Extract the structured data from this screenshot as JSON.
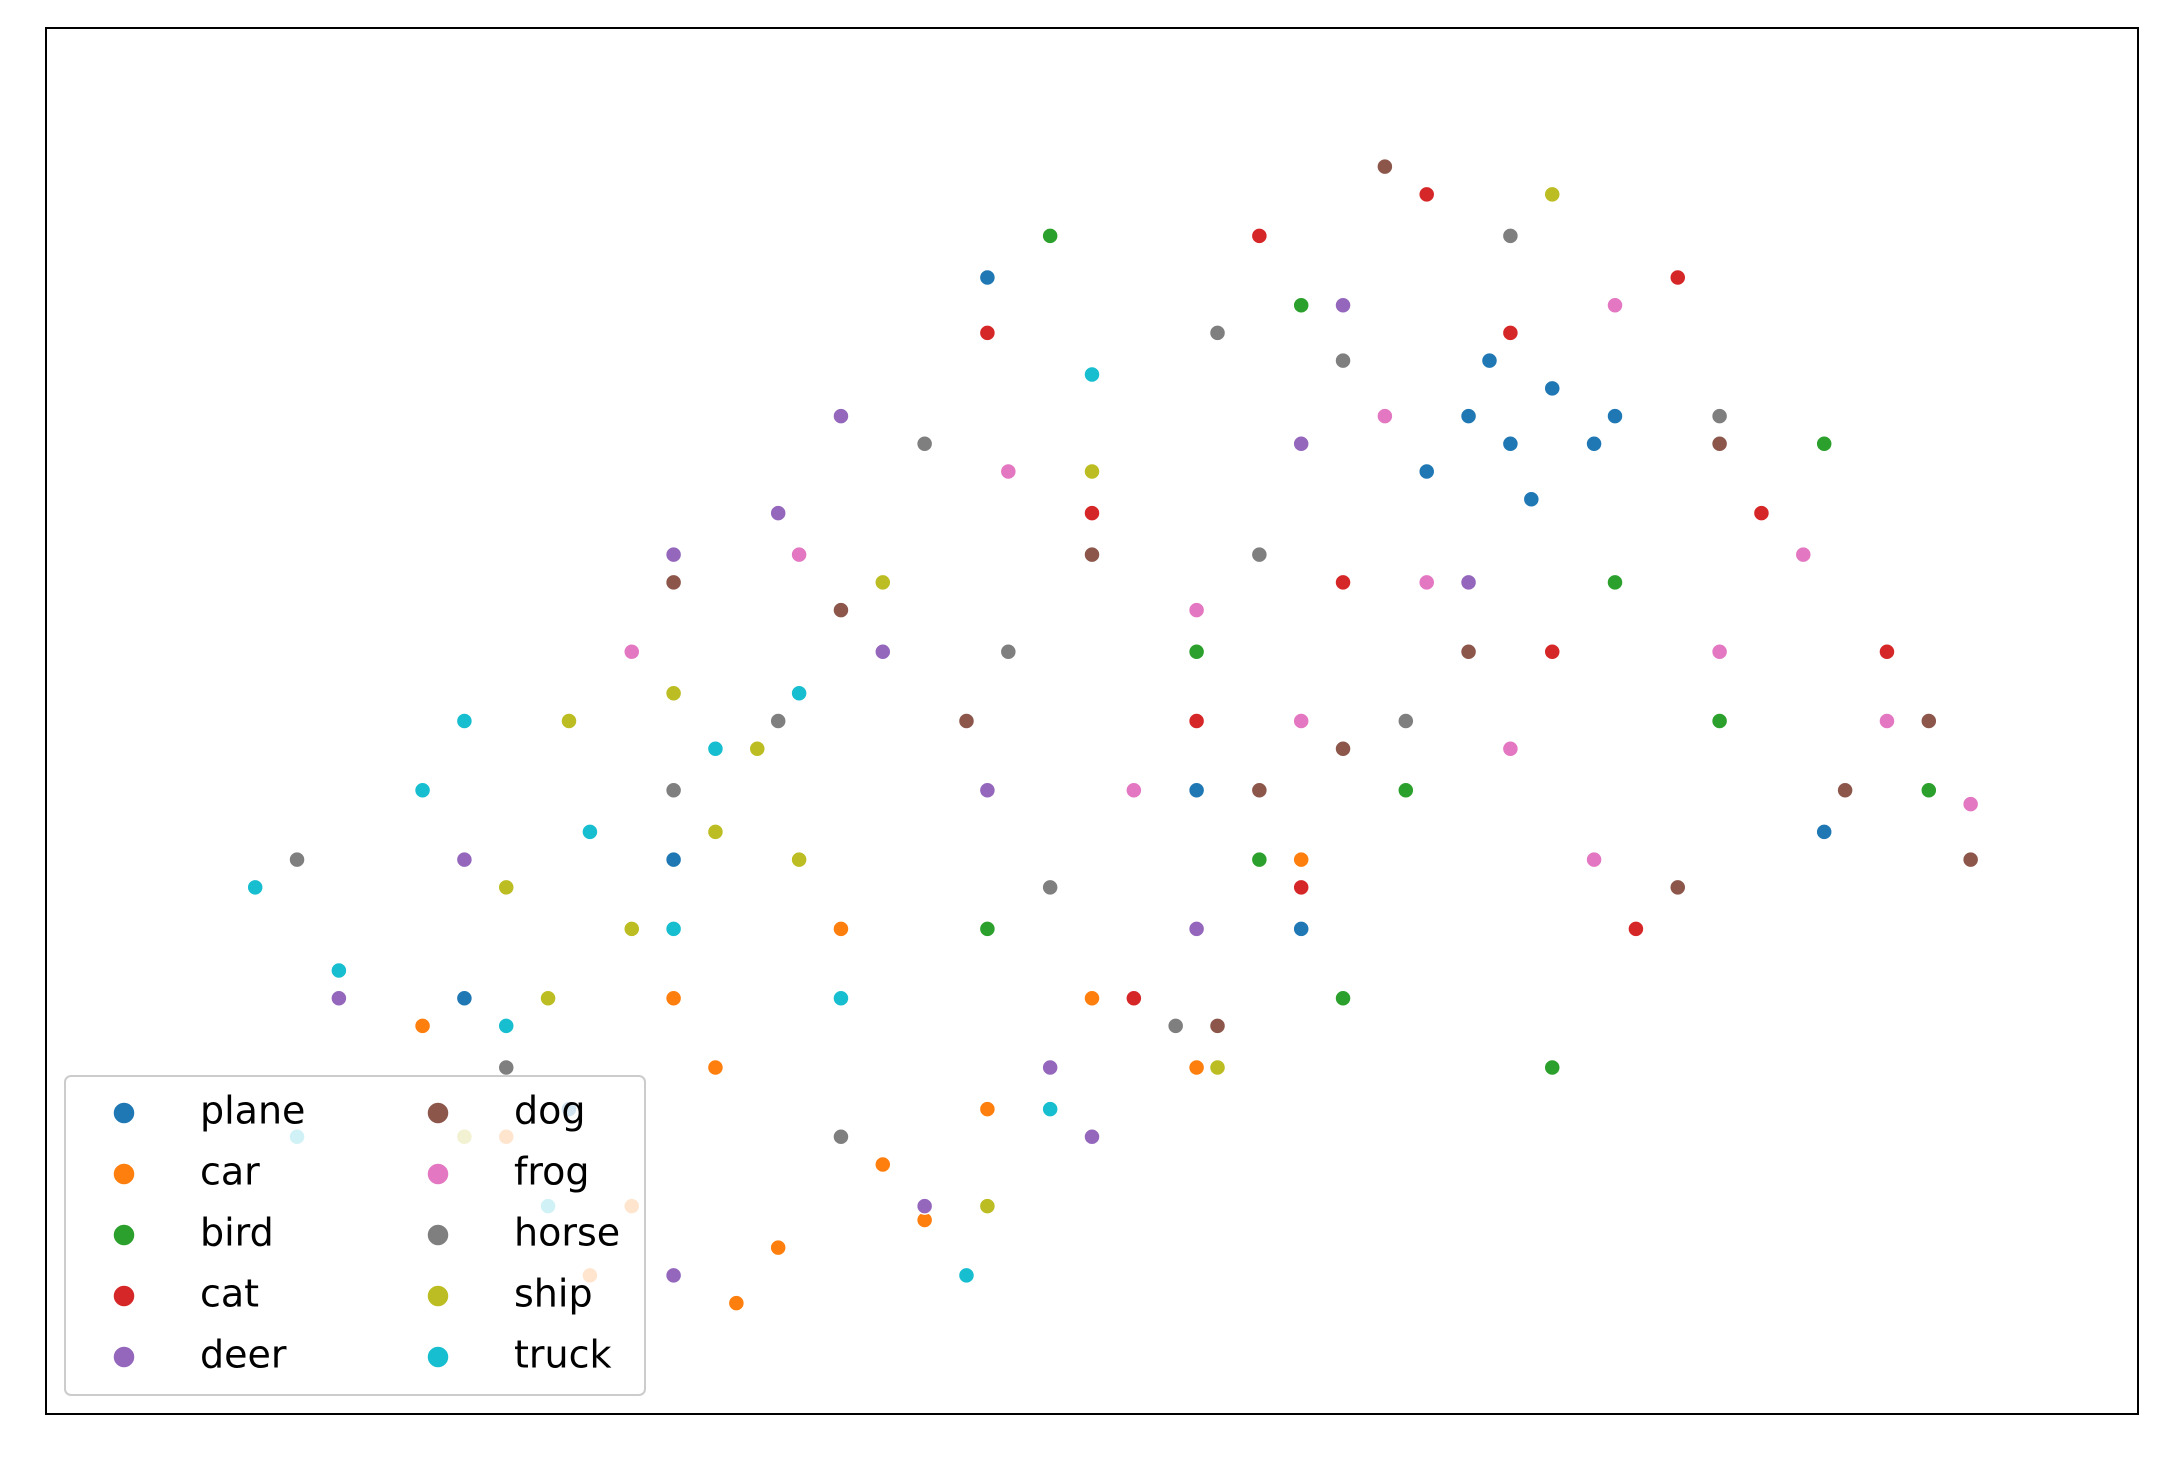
{
  "chart_data": {
    "type": "scatter",
    "xlim": [
      0,
      100
    ],
    "ylim": [
      0,
      100
    ],
    "legend": "lower left",
    "legend_columns": 2,
    "series": [
      {
        "name": "plane",
        "color": "#1f77b4",
        "x": [
          68,
          70,
          72,
          66,
          74,
          71,
          69,
          75,
          20,
          25,
          30,
          45,
          55,
          60,
          85
        ],
        "values": [
          72,
          70,
          74,
          68,
          70,
          66,
          76,
          72,
          30,
          22,
          40,
          82,
          45,
          35,
          42
        ]
      },
      {
        "name": "car",
        "color": "#ff7f0e",
        "x": [
          22,
          28,
          32,
          35,
          40,
          30,
          26,
          45,
          50,
          38,
          42,
          55,
          18,
          60,
          33
        ],
        "values": [
          20,
          15,
          25,
          12,
          18,
          30,
          10,
          22,
          30,
          35,
          14,
          25,
          28,
          40,
          8
        ]
      },
      {
        "name": "bird",
        "color": "#2ca02c",
        "x": [
          40,
          50,
          55,
          60,
          65,
          70,
          75,
          80,
          85,
          58,
          62,
          48,
          90,
          45,
          72
        ],
        "values": [
          60,
          75,
          55,
          80,
          45,
          85,
          60,
          50,
          70,
          40,
          30,
          85,
          45,
          35,
          25
        ]
      },
      {
        "name": "cat",
        "color": "#d62728",
        "x": [
          42,
          50,
          58,
          62,
          66,
          70,
          78,
          82,
          88,
          55,
          60,
          45,
          72,
          76,
          52
        ],
        "values": [
          70,
          65,
          85,
          60,
          88,
          78,
          82,
          65,
          55,
          50,
          38,
          78,
          55,
          35,
          30
        ]
      },
      {
        "name": "deer",
        "color": "#9467bd",
        "x": [
          14,
          20,
          30,
          40,
          45,
          48,
          55,
          60,
          35,
          62,
          30,
          42,
          50,
          68,
          38
        ],
        "values": [
          30,
          40,
          62,
          55,
          45,
          25,
          35,
          70,
          65,
          80,
          10,
          15,
          20,
          60,
          72
        ]
      },
      {
        "name": "dog",
        "color": "#8c564b",
        "x": [
          30,
          38,
          44,
          50,
          58,
          64,
          68,
          74,
          80,
          86,
          90,
          92,
          56,
          62,
          78
        ],
        "values": [
          60,
          58,
          50,
          62,
          45,
          90,
          55,
          40,
          70,
          45,
          50,
          40,
          28,
          48,
          38
        ]
      },
      {
        "name": "frog",
        "color": "#e377c2",
        "x": [
          28,
          36,
          46,
          55,
          60,
          66,
          70,
          74,
          80,
          84,
          88,
          92,
          52,
          64,
          75
        ],
        "values": [
          55,
          62,
          68,
          58,
          50,
          60,
          48,
          40,
          55,
          62,
          50,
          44,
          45,
          72,
          80
        ]
      },
      {
        "name": "horse",
        "color": "#7f7f7f",
        "x": [
          12,
          22,
          30,
          42,
          48,
          54,
          58,
          62,
          65,
          70,
          38,
          46,
          80,
          35,
          56
        ],
        "values": [
          40,
          25,
          45,
          70,
          38,
          28,
          62,
          76,
          50,
          85,
          20,
          55,
          72,
          50,
          78
        ]
      },
      {
        "name": "ship",
        "color": "#bcbd22",
        "x": [
          18,
          22,
          25,
          28,
          30,
          32,
          34,
          24,
          36,
          20,
          45,
          50,
          72,
          56,
          40
        ],
        "values": [
          45,
          38,
          50,
          35,
          52,
          42,
          48,
          30,
          40,
          20,
          15,
          68,
          88,
          25,
          60
        ]
      },
      {
        "name": "truck",
        "color": "#17becf",
        "x": [
          10,
          14,
          18,
          22,
          26,
          32,
          30,
          20,
          24,
          12,
          36,
          38,
          48,
          44,
          50
        ],
        "values": [
          38,
          32,
          45,
          28,
          42,
          48,
          35,
          50,
          15,
          20,
          52,
          30,
          22,
          10,
          75
        ]
      }
    ]
  }
}
